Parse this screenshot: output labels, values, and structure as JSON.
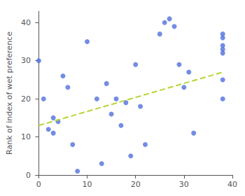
{
  "chart_data": {
    "type": "scatter",
    "ylabel": "Rank of index of wet preference",
    "series": [
      {
        "type": "scatter",
        "x": [
          0,
          1,
          2,
          3,
          3,
          4,
          5,
          6,
          7,
          8,
          10,
          12,
          13,
          14,
          15,
          16,
          17,
          18,
          19,
          20,
          21,
          22,
          25,
          26,
          27,
          28,
          29,
          30,
          31,
          32,
          38,
          38,
          38,
          38,
          38,
          38,
          38
        ],
        "values": [
          30,
          20,
          12,
          15,
          11,
          14,
          26,
          23,
          8,
          1,
          35,
          20,
          3,
          24,
          16,
          20,
          13,
          19,
          5,
          29,
          18,
          8,
          37,
          40,
          41,
          39,
          29,
          23,
          27,
          11,
          37,
          36,
          34,
          33,
          32,
          25,
          20
        ]
      },
      {
        "type": "line",
        "line_style": "dashed",
        "x": [
          0,
          38
        ],
        "values": [
          13,
          27
        ]
      }
    ],
    "xlim": [
      -0.5,
      40
    ],
    "ylim": [
      0,
      43
    ],
    "xticks": [
      0,
      10,
      20,
      30,
      40
    ],
    "yticks": [
      0,
      10,
      20,
      30,
      40
    ],
    "grid": false
  }
}
